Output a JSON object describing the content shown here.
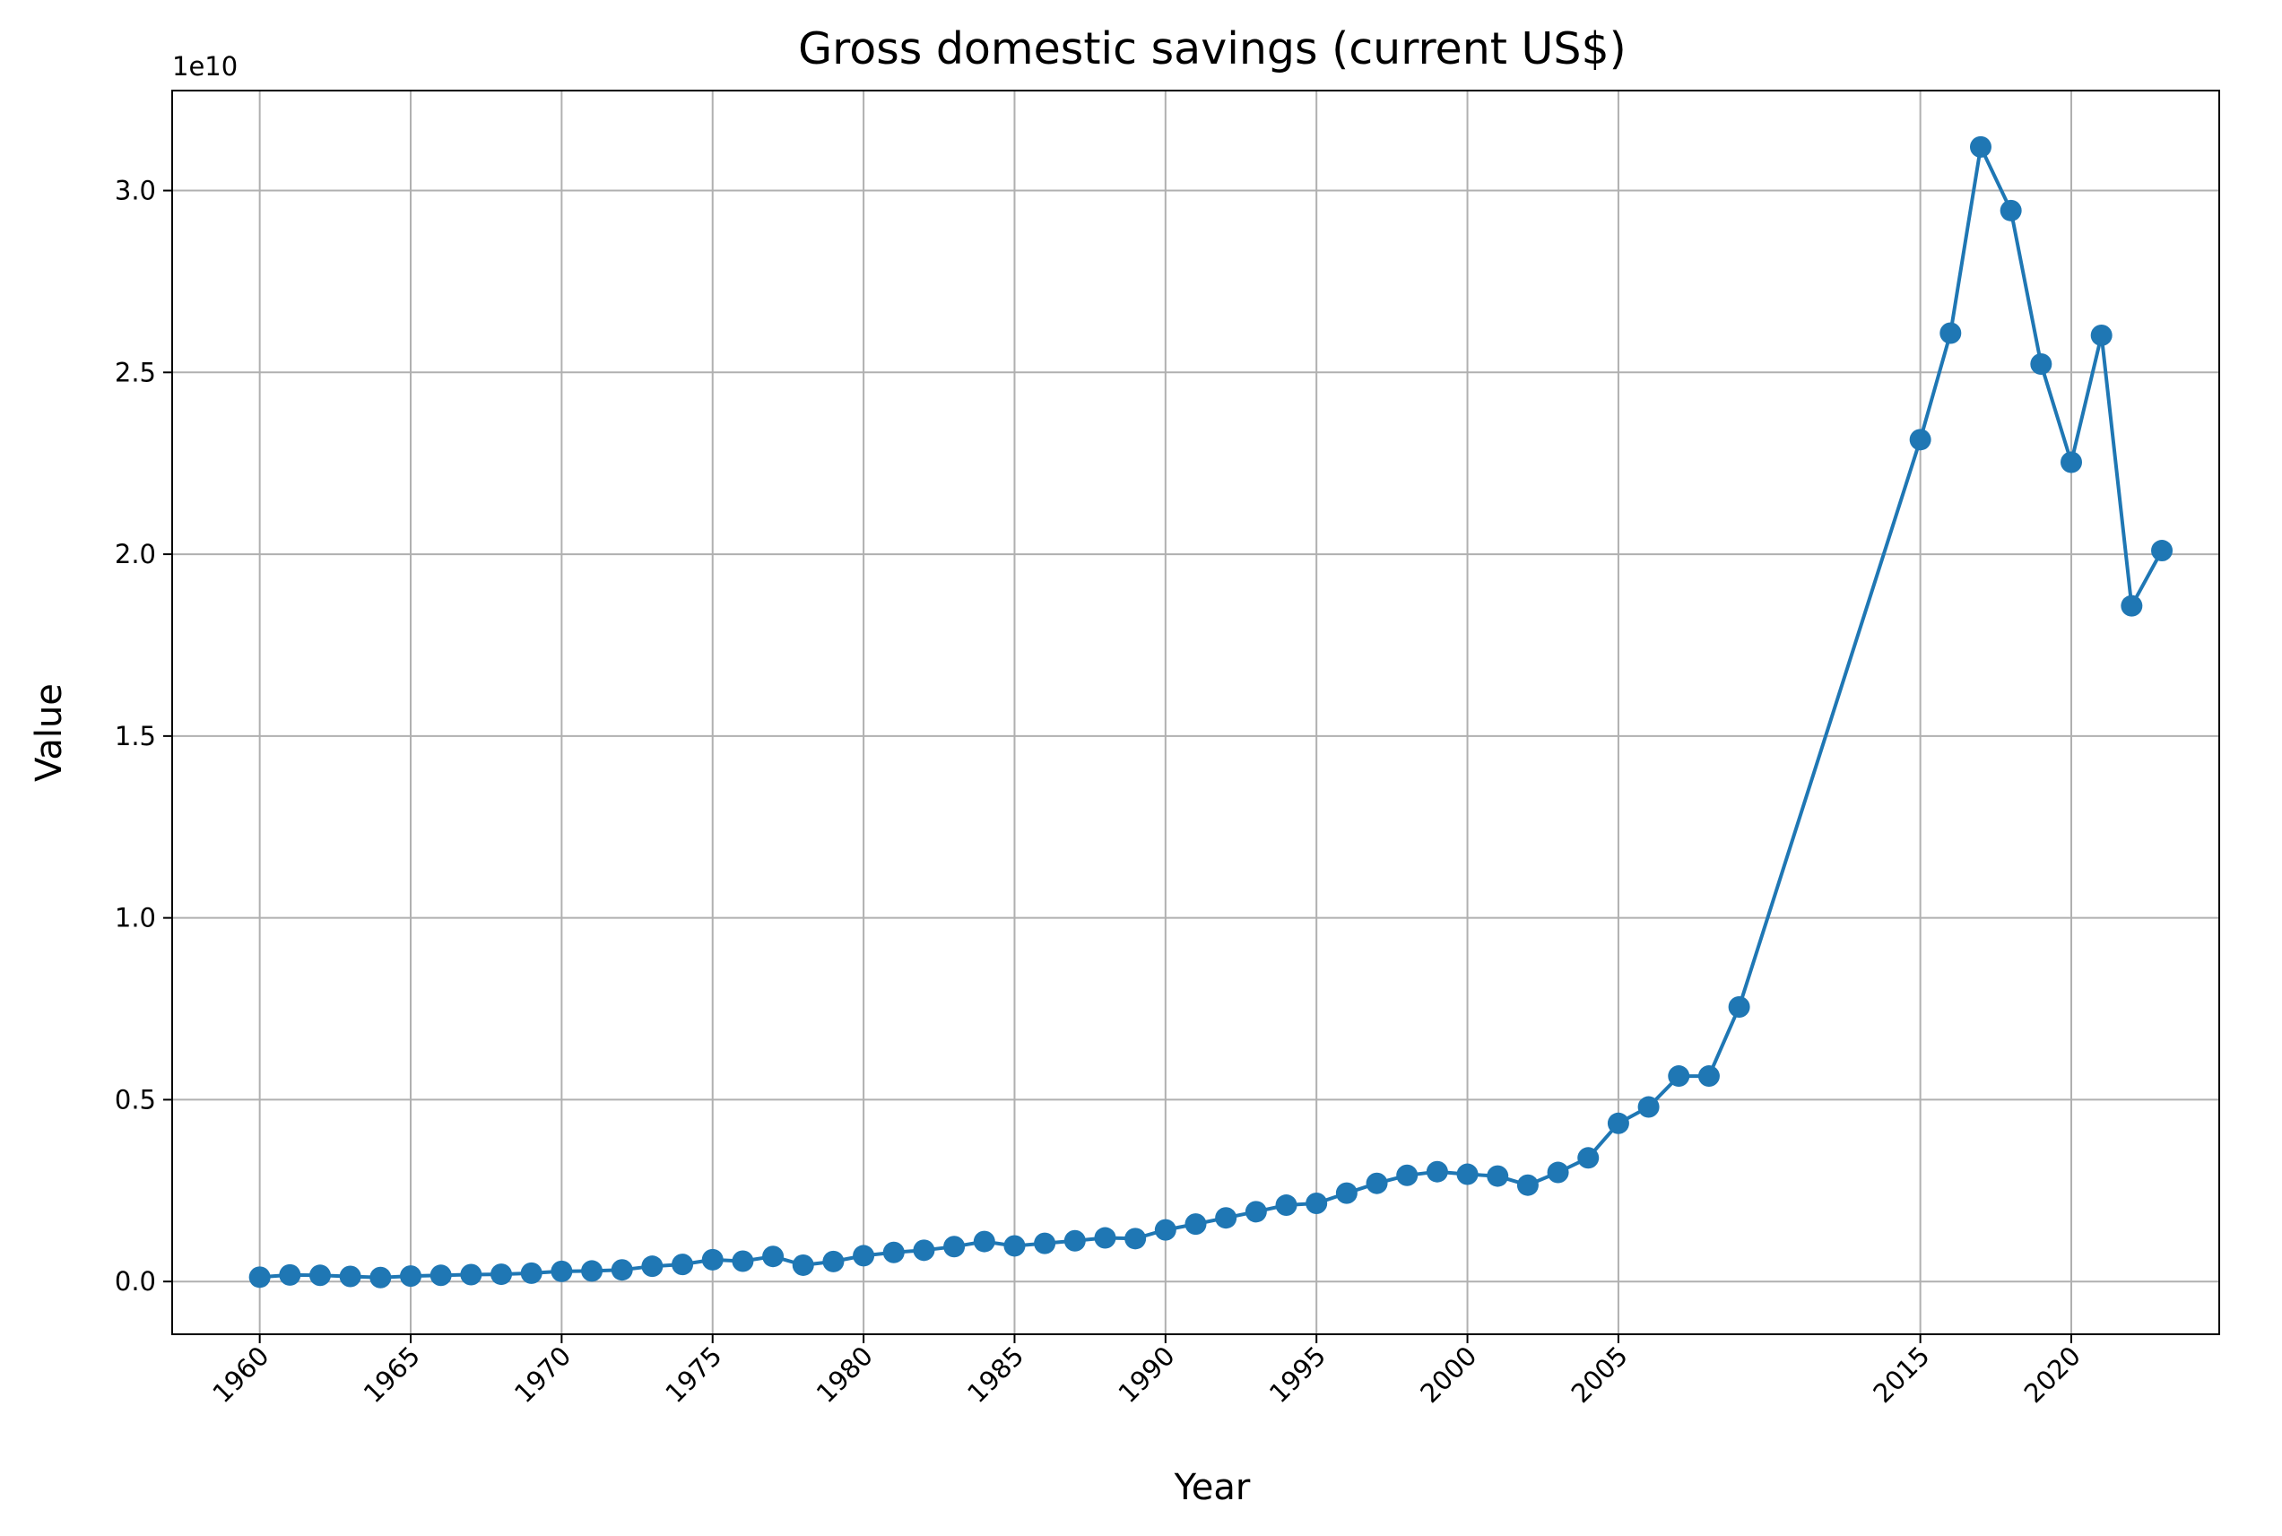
{
  "chart_data": {
    "type": "line",
    "title": "Gross domestic savings (current US$)",
    "xlabel": "Year",
    "ylabel": "Value",
    "y_offset_label": "1e10",
    "y_scale": 10000000000.0,
    "xlim": [
      1957.1,
      2024.9
    ],
    "ylim": [
      -1450000000.0,
      32750000000.0
    ],
    "x_ticks": [
      1960,
      1965,
      1970,
      1975,
      1980,
      1985,
      1990,
      1995,
      2000,
      2005,
      2015,
      2020
    ],
    "x_tick_labels": [
      "1960",
      "1965",
      "1970",
      "1975",
      "1980",
      "1985",
      "1990",
      "1995",
      "2000",
      "2005",
      "2015",
      "2020"
    ],
    "y_ticks": [
      0,
      5000000000.0,
      10000000000.0,
      15000000000.0,
      20000000000.0,
      25000000000.0,
      30000000000.0
    ],
    "y_tick_labels": [
      "0.0",
      "0.5",
      "1.0",
      "1.5",
      "2.0",
      "2.5",
      "3.0"
    ],
    "grid": true,
    "line_color": "#1f77b4",
    "marker": "circle",
    "series": [
      {
        "x": [
          1960,
          1961,
          1962,
          1963,
          1964,
          1965,
          1966,
          1967,
          1968,
          1969,
          1970,
          1971,
          1972,
          1973,
          1974,
          1975,
          1976,
          1977,
          1978,
          1979,
          1980,
          1981,
          1982,
          1983,
          1984,
          1985,
          1986,
          1987,
          1988,
          1989,
          1990,
          1991,
          1992,
          1993,
          1994,
          1995,
          1996,
          1997,
          1998,
          1999,
          2000,
          2001,
          2002,
          2003,
          2004,
          2005,
          2006,
          2007,
          2008,
          2009,
          2015,
          2016,
          2017,
          2018,
          2019,
          2020,
          2021,
          2022,
          2023
        ],
        "values": [
          120000000.0,
          180000000.0,
          170000000.0,
          140000000.0,
          110000000.0,
          150000000.0,
          170000000.0,
          190000000.0,
          200000000.0,
          230000000.0,
          280000000.0,
          290000000.0,
          320000000.0,
          420000000.0,
          470000000.0,
          600000000.0,
          560000000.0,
          690000000.0,
          450000000.0,
          550000000.0,
          710000000.0,
          800000000.0,
          860000000.0,
          960000000.0,
          1100000000.0,
          980000000.0,
          1050000000.0,
          1120000000.0,
          1200000000.0,
          1180000000.0,
          1420000000.0,
          1580000000.0,
          1750000000.0,
          1920000000.0,
          2100000000.0,
          2150000000.0,
          2430000000.0,
          2700000000.0,
          2920000000.0,
          3020000000.0,
          2950000000.0,
          2900000000.0,
          2650000000.0,
          3000000000.0,
          3400000000.0,
          4350000000.0,
          4800000000.0,
          5650000000.0,
          5650000000.0,
          7550000000.0,
          23150000000.0,
          26080000000.0,
          31200000000.0,
          29450000000.0,
          25230000000.0,
          22530000000.0,
          26020000000.0,
          18580000000.0,
          20100000000.0
        ]
      }
    ]
  }
}
